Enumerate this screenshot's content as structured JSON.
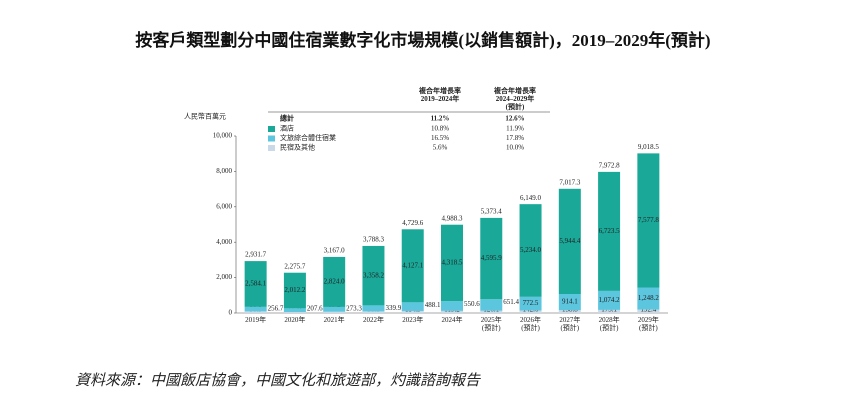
{
  "chart_data": {
    "type": "stacked_bar",
    "title": "按客戶類型劃分中國住宿業數字化市場規模(以銷售額計)，2019–2029年(預計)",
    "y_label": "人民幣百萬元",
    "source": "資料來源：中國飯店協會，中國文化和旅遊部，灼識諮詢報告",
    "categories": [
      "2019年",
      "2020年",
      "2021年",
      "2022年",
      "2023年",
      "2024年",
      "2025年\n(預計)",
      "2026年\n(預計)",
      "2027年\n(預計)",
      "2028年\n(預計)",
      "2029年\n(預計)"
    ],
    "ylim": [
      0,
      10000
    ],
    "yticks": [
      0,
      {
        "value": 2000,
        "label": "2,000"
      },
      {
        "value": 4000,
        "label": "4,000"
      },
      {
        "value": 6000,
        "label": "6,000"
      },
      {
        "value": 8000,
        "label": "8,000"
      },
      {
        "value": 10000,
        "label": "10,000"
      }
    ],
    "cagr_headers": [
      "複合年增長率\n2019–2024年",
      "複合年增長率\n2024–2029年\n(預計)"
    ],
    "total_name": "總計",
    "total_cagr": [
      "11.2%",
      "12.6%"
    ],
    "series": [
      {
        "name": "民宿及其他",
        "color": "#c9d9e8",
        "cagr": [
          "5.6%",
          "10.0%"
        ],
        "values": [
          90.9,
          55.9,
          69.7,
          90.1,
          114.5,
          119.2,
          126.1,
          142.6,
          158.8,
          175.1,
          192.4
        ]
      },
      {
        "name": "文旅綜合體住宿業",
        "color": "#5cc6df",
        "cagr": [
          "16.5%",
          "17.8%"
        ],
        "values": [
          256.7,
          207.6,
          273.3,
          339.9,
          488.1,
          550.6,
          651.4,
          772.5,
          914.1,
          1074.2,
          1248.2
        ],
        "value_labels": [
          "256.7",
          "207.6",
          "273.3",
          "339.9",
          "488.1",
          "550.6",
          "651.4",
          "772.5",
          "914.1",
          "1,074.2",
          "1,248.2"
        ]
      },
      {
        "name": "酒店",
        "color": "#1aa898",
        "cagr": [
          "10.8%",
          "11.9%"
        ],
        "values": [
          2584.1,
          2012.2,
          2824.0,
          3358.2,
          4127.1,
          4318.5,
          4595.9,
          5234.0,
          5944.4,
          6723.5,
          7577.8
        ],
        "value_labels": [
          "2,584.1",
          "2,012.2",
          "2,824.0",
          "3,358.2",
          "4,127.1",
          "4,318.5",
          "4,595.9",
          "5,234.0",
          "5,944.4",
          "6,723.5",
          "7,577.8"
        ]
      }
    ],
    "totals": {
      "values": [
        2931.7,
        2275.7,
        3167.0,
        3788.3,
        4729.6,
        4988.3,
        5373.4,
        6149.0,
        7017.3,
        7972.8,
        9018.5
      ],
      "value_labels": [
        "2,931.7",
        "2,275.7",
        "3,167.0",
        "3,788.3",
        "4,729.6",
        "4,988.3",
        "5,373.4",
        "6,149.0",
        "7,017.3",
        "7,972.8",
        "9,018.5"
      ]
    }
  }
}
